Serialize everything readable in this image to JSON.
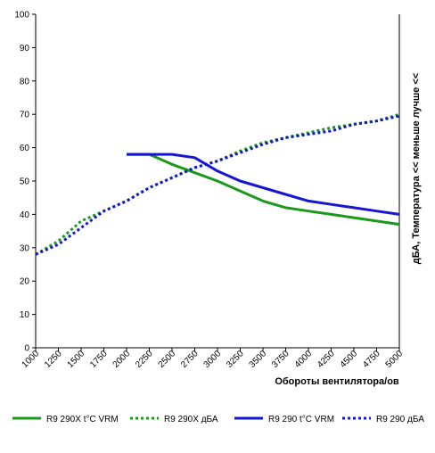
{
  "chart_data": {
    "type": "line",
    "xlabel": "Обороты вентилятора/ов",
    "ylabel": "дБА, Температура << меньше лучше <<",
    "xlim": [
      1000,
      5000
    ],
    "ylim": [
      0,
      100
    ],
    "x_ticks": [
      "1000",
      "1250",
      "1500",
      "1750",
      "2000",
      "2250",
      "2500",
      "2750",
      "3000",
      "3250",
      "3500",
      "3750",
      "4000",
      "4250",
      "4500",
      "4750",
      "5000"
    ],
    "y_ticks": [
      "0",
      "10",
      "20",
      "30",
      "40",
      "50",
      "60",
      "70",
      "80",
      "90",
      "100"
    ],
    "grid": "off",
    "legend_position": "bottom",
    "series": [
      {
        "name": "R9 290X t°C VRM",
        "color": "#1a9a1a",
        "style": "solid",
        "points": [
          [
            2000,
            58
          ],
          [
            2250,
            58
          ],
          [
            2500,
            55
          ],
          [
            2750,
            52.5
          ],
          [
            3000,
            50
          ],
          [
            3250,
            47
          ],
          [
            3500,
            44
          ],
          [
            3750,
            42
          ],
          [
            4000,
            41
          ],
          [
            4250,
            40
          ],
          [
            4500,
            39
          ],
          [
            4750,
            38
          ],
          [
            5000,
            37
          ]
        ]
      },
      {
        "name": "R9 290X дБА",
        "color": "#1a9a1a",
        "style": "dotted",
        "points": [
          [
            1000,
            28
          ],
          [
            1250,
            32
          ],
          [
            1500,
            38
          ],
          [
            1750,
            41
          ],
          [
            2000,
            44
          ],
          [
            2250,
            48
          ],
          [
            2500,
            51
          ],
          [
            2750,
            54
          ],
          [
            3000,
            56
          ],
          [
            3250,
            59
          ],
          [
            3500,
            61.5
          ],
          [
            3750,
            63
          ],
          [
            4000,
            64.5
          ],
          [
            4250,
            66
          ],
          [
            4500,
            67
          ],
          [
            4750,
            68
          ],
          [
            5000,
            70
          ]
        ]
      },
      {
        "name": "R9 290 t°C VRM",
        "color": "#1515d4",
        "style": "solid",
        "points": [
          [
            2000,
            58
          ],
          [
            2250,
            58
          ],
          [
            2500,
            58
          ],
          [
            2750,
            57
          ],
          [
            3000,
            53
          ],
          [
            3250,
            50
          ],
          [
            3500,
            48
          ],
          [
            3750,
            46
          ],
          [
            4000,
            44
          ],
          [
            4250,
            43
          ],
          [
            4500,
            42
          ],
          [
            4750,
            41
          ],
          [
            5000,
            40
          ]
        ]
      },
      {
        "name": "R9 290 дБА",
        "color": "#1515d4",
        "style": "dotted",
        "points": [
          [
            1000,
            28
          ],
          [
            1250,
            31
          ],
          [
            1500,
            36
          ],
          [
            1750,
            41
          ],
          [
            2000,
            44
          ],
          [
            2250,
            48
          ],
          [
            2500,
            51
          ],
          [
            2750,
            54
          ],
          [
            3000,
            56
          ],
          [
            3250,
            58.5
          ],
          [
            3500,
            61
          ],
          [
            3750,
            63
          ],
          [
            4000,
            64
          ],
          [
            4250,
            65
          ],
          [
            4500,
            67
          ],
          [
            4750,
            68
          ],
          [
            5000,
            69.5
          ]
        ]
      }
    ]
  }
}
